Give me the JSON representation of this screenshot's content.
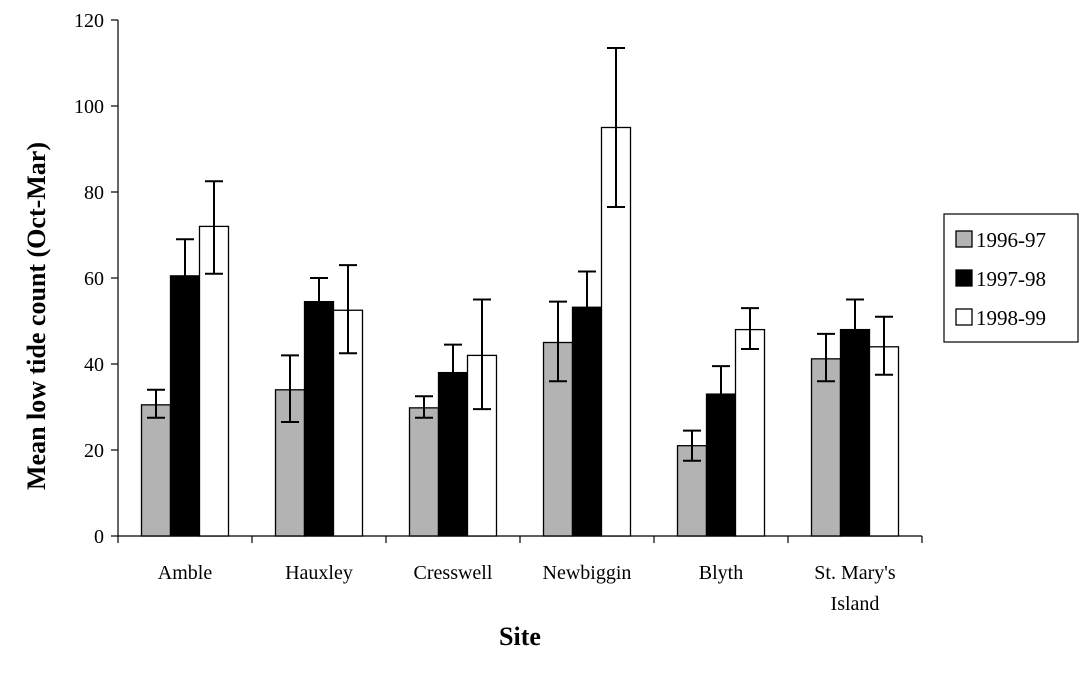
{
  "chart_data": {
    "type": "bar",
    "title": "",
    "xlabel": "Site",
    "ylabel": "Mean low tide count (Oct-Mar)",
    "ylim": [
      0,
      120
    ],
    "yticks": [
      0,
      20,
      40,
      60,
      80,
      100,
      120
    ],
    "categories": [
      [
        "Amble"
      ],
      [
        "Hauxley"
      ],
      [
        "Cresswell"
      ],
      [
        "Newbiggin"
      ],
      [
        "Blyth"
      ],
      [
        "St. Mary's",
        "Island"
      ]
    ],
    "series": [
      {
        "name": "1996-97",
        "color": "#b3b3b3",
        "values": [
          30.5,
          34.0,
          29.8,
          45.0,
          21.0,
          41.2
        ],
        "error_low": [
          27.5,
          26.5,
          27.5,
          36.0,
          17.5,
          36.0
        ],
        "error_high": [
          34.0,
          42.0,
          32.5,
          54.5,
          24.5,
          47.0
        ]
      },
      {
        "name": "1997-98",
        "color": "#000000",
        "values": [
          60.5,
          54.5,
          38.0,
          53.2,
          33.0,
          48.0
        ],
        "error_low": [
          52.5,
          49.0,
          32.0,
          45.0,
          26.5,
          41.5
        ],
        "error_high": [
          69.0,
          60.0,
          44.5,
          61.5,
          39.5,
          55.0
        ]
      },
      {
        "name": "1998-99",
        "color": "#ffffff",
        "values": [
          72.0,
          52.5,
          42.0,
          95.0,
          48.0,
          44.0
        ],
        "error_low": [
          61.0,
          42.5,
          29.5,
          76.5,
          43.5,
          37.5
        ],
        "error_high": [
          82.5,
          63.0,
          55.0,
          113.5,
          53.0,
          51.0
        ]
      }
    ],
    "grid": false,
    "legend_position": "right"
  }
}
